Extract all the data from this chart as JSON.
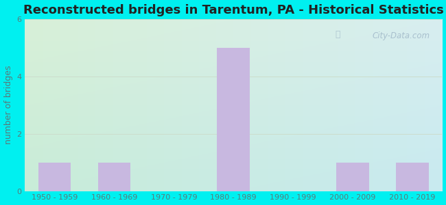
{
  "title": "Reconstructed bridges in Tarentum, PA - Historical Statistics",
  "categories": [
    "1950 - 1959",
    "1960 - 1969",
    "1970 - 1979",
    "1980 - 1989",
    "1990 - 1999",
    "2000 - 2009",
    "2010 - 2019"
  ],
  "values": [
    1,
    1,
    0,
    5,
    0,
    1,
    1
  ],
  "bar_color": "#c8b8e0",
  "ylabel": "number of bridges",
  "ylim": [
    0,
    6
  ],
  "yticks": [
    0,
    2,
    4,
    6
  ],
  "fig_bg_color": "#00f0f0",
  "plot_bg_color_tl": "#d8f0d8",
  "plot_bg_color_tr": "#d8eef0",
  "plot_bg_color_bl": "#c8ecd8",
  "plot_bg_color_br": "#c8eaf0",
  "title_fontsize": 13,
  "ylabel_fontsize": 9,
  "tick_fontsize": 8,
  "watermark": "City-Data.com",
  "bar_width": 0.55,
  "grid_color": "#ccddcc",
  "title_color": "#222222",
  "ylabel_color": "#5a7a7a",
  "tick_color": "#5a7a7a"
}
